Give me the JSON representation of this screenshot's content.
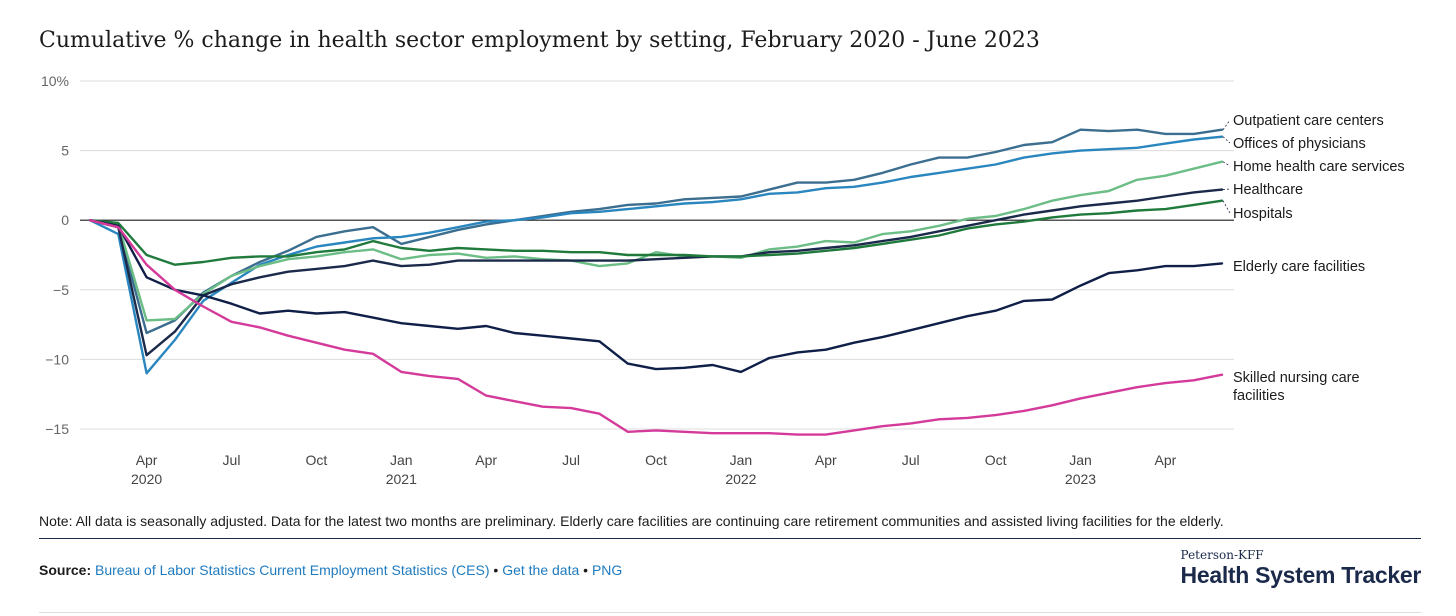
{
  "chart_data": {
    "type": "line",
    "title": "Cumulative % change in health sector employment by setting, February 2020 - June 2023",
    "ylim": [
      -15,
      10
    ],
    "y_ticks": [
      {
        "value": 10,
        "label": "10%"
      },
      {
        "value": 5,
        "label": "5"
      },
      {
        "value": 0,
        "label": "0"
      },
      {
        "value": -5,
        "label": "−5"
      },
      {
        "value": -10,
        "label": "−10"
      },
      {
        "value": -15,
        "label": "−15"
      }
    ],
    "x_ticks": [
      {
        "index": 2,
        "label": "Apr",
        "year": "2020"
      },
      {
        "index": 5,
        "label": "Jul",
        "year": ""
      },
      {
        "index": 8,
        "label": "Oct",
        "year": ""
      },
      {
        "index": 11,
        "label": "Jan",
        "year": "2021"
      },
      {
        "index": 14,
        "label": "Apr",
        "year": ""
      },
      {
        "index": 17,
        "label": "Jul",
        "year": ""
      },
      {
        "index": 20,
        "label": "Oct",
        "year": ""
      },
      {
        "index": 23,
        "label": "Jan",
        "year": "2022"
      },
      {
        "index": 26,
        "label": "Apr",
        "year": ""
      },
      {
        "index": 29,
        "label": "Jul",
        "year": ""
      },
      {
        "index": 32,
        "label": "Oct",
        "year": ""
      },
      {
        "index": 35,
        "label": "Jan",
        "year": "2023"
      },
      {
        "index": 38,
        "label": "Apr",
        "year": ""
      }
    ],
    "x": [
      "2020-02",
      "2020-03",
      "2020-04",
      "2020-05",
      "2020-06",
      "2020-07",
      "2020-08",
      "2020-09",
      "2020-10",
      "2020-11",
      "2020-12",
      "2021-01",
      "2021-02",
      "2021-03",
      "2021-04",
      "2021-05",
      "2021-06",
      "2021-07",
      "2021-08",
      "2021-09",
      "2021-10",
      "2021-11",
      "2021-12",
      "2022-01",
      "2022-02",
      "2022-03",
      "2022-04",
      "2022-05",
      "2022-06",
      "2022-07",
      "2022-08",
      "2022-09",
      "2022-10",
      "2022-11",
      "2022-12",
      "2023-01",
      "2023-02",
      "2023-03",
      "2023-04",
      "2023-05",
      "2023-06"
    ],
    "grid": true,
    "series": [
      {
        "name": "Outpatient care centers",
        "color": "#3c6e8f",
        "values": [
          0,
          -0.5,
          -8.1,
          -7.2,
          -5.2,
          -4.0,
          -3.0,
          -2.2,
          -1.2,
          -0.8,
          -0.5,
          -1.7,
          -1.2,
          -0.7,
          -0.3,
          0.0,
          0.3,
          0.6,
          0.8,
          1.1,
          1.2,
          1.5,
          1.6,
          1.7,
          2.2,
          2.7,
          2.7,
          2.9,
          3.4,
          4.0,
          4.5,
          4.5,
          4.9,
          5.4,
          5.6,
          6.5,
          6.4,
          6.5,
          6.2,
          6.2,
          6.5
        ]
      },
      {
        "name": "Offices of physicians",
        "color": "#2a86bf",
        "values": [
          0,
          -1.0,
          -11.0,
          -8.6,
          -5.8,
          -4.5,
          -3.2,
          -2.5,
          -1.9,
          -1.6,
          -1.3,
          -1.2,
          -0.9,
          -0.5,
          -0.1,
          0.0,
          0.2,
          0.5,
          0.6,
          0.8,
          1.0,
          1.2,
          1.3,
          1.5,
          1.9,
          2.0,
          2.3,
          2.4,
          2.7,
          3.1,
          3.4,
          3.7,
          4.0,
          4.5,
          4.8,
          5.0,
          5.1,
          5.2,
          5.5,
          5.8,
          6.0
        ]
      },
      {
        "name": "Home health care services",
        "color": "#6cbd86",
        "values": [
          0,
          -0.3,
          -7.2,
          -7.1,
          -5.3,
          -4.0,
          -3.3,
          -2.8,
          -2.6,
          -2.3,
          -2.1,
          -2.8,
          -2.5,
          -2.4,
          -2.7,
          -2.6,
          -2.8,
          -2.9,
          -3.3,
          -3.1,
          -2.3,
          -2.6,
          -2.6,
          -2.7,
          -2.1,
          -1.9,
          -1.5,
          -1.6,
          -1.0,
          -0.8,
          -0.4,
          0.1,
          0.3,
          0.8,
          1.4,
          1.8,
          2.1,
          2.9,
          3.2,
          3.7,
          4.2
        ]
      },
      {
        "name": "Healthcare",
        "color": "#1b2a4a",
        "values": [
          0,
          -0.5,
          -9.7,
          -8.0,
          -5.4,
          -4.6,
          -4.1,
          -3.7,
          -3.5,
          -3.3,
          -2.9,
          -3.3,
          -3.2,
          -2.9,
          -2.9,
          -2.9,
          -2.9,
          -2.9,
          -2.9,
          -2.9,
          -2.8,
          -2.7,
          -2.6,
          -2.6,
          -2.3,
          -2.2,
          -2.0,
          -1.8,
          -1.5,
          -1.2,
          -0.8,
          -0.4,
          0.0,
          0.4,
          0.7,
          1.0,
          1.2,
          1.4,
          1.7,
          2.0,
          2.2
        ]
      },
      {
        "name": "Hospitals",
        "color": "#1f7a3c",
        "values": [
          0,
          -0.2,
          -2.5,
          -3.2,
          -3.0,
          -2.7,
          -2.6,
          -2.6,
          -2.3,
          -2.1,
          -1.5,
          -2.0,
          -2.2,
          -2.0,
          -2.1,
          -2.2,
          -2.2,
          -2.3,
          -2.3,
          -2.5,
          -2.5,
          -2.5,
          -2.6,
          -2.6,
          -2.5,
          -2.4,
          -2.2,
          -2.0,
          -1.7,
          -1.4,
          -1.1,
          -0.6,
          -0.3,
          -0.1,
          0.2,
          0.4,
          0.5,
          0.7,
          0.8,
          1.1,
          1.4
        ]
      },
      {
        "name": "Elderly care facilities",
        "color": "#0f1f48",
        "values": [
          0,
          -0.4,
          -4.1,
          -5.0,
          -5.4,
          -6.0,
          -6.7,
          -6.5,
          -6.7,
          -6.6,
          -7.0,
          -7.4,
          -7.6,
          -7.8,
          -7.6,
          -8.1,
          -8.3,
          -8.5,
          -8.7,
          -10.3,
          -10.7,
          -10.6,
          -10.4,
          -10.9,
          -9.9,
          -9.5,
          -9.3,
          -8.8,
          -8.4,
          -7.9,
          -7.4,
          -6.9,
          -6.5,
          -5.8,
          -5.7,
          -4.7,
          -3.8,
          -3.6,
          -3.3,
          -3.3,
          -3.1
        ]
      },
      {
        "name": "Skilled nursing care facilities",
        "color": "#d43a9a",
        "values": [
          0,
          -0.5,
          -3.2,
          -5.0,
          -6.2,
          -7.3,
          -7.7,
          -8.3,
          -8.8,
          -9.3,
          -9.6,
          -10.9,
          -11.2,
          -11.4,
          -12.6,
          -13.0,
          -13.4,
          -13.5,
          -13.9,
          -15.2,
          -15.1,
          -15.2,
          -15.3,
          -15.3,
          -15.3,
          -15.4,
          -15.4,
          -15.1,
          -14.8,
          -14.6,
          -14.3,
          -14.2,
          -14.0,
          -13.7,
          -13.3,
          -12.8,
          -12.4,
          -12.0,
          -11.7,
          -11.5,
          -11.1
        ]
      }
    ],
    "series_labels": [
      {
        "lines": [
          "Outpatient care centers"
        ]
      },
      {
        "lines": [
          "Offices of physicians"
        ]
      },
      {
        "lines": [
          "Home health care services"
        ]
      },
      {
        "lines": [
          "Healthcare"
        ]
      },
      {
        "lines": [
          "Hospitals"
        ]
      },
      {
        "lines": [
          "Elderly care facilities"
        ]
      },
      {
        "lines": [
          "Skilled nursing care",
          "facilities"
        ]
      }
    ]
  },
  "note": "Note: All data is seasonally adjusted. Data for the latest two months are preliminary. Elderly care facilities are continuing care retirement communities and assisted living facilities for the elderly.",
  "source": {
    "prefix": "Source:",
    "link1": "Bureau of Labor Statistics Current Employment Statistics (CES)",
    "sep1": "•",
    "link2": "Get the data",
    "sep2": "•",
    "link3": "PNG"
  },
  "brand": {
    "small": "Peterson-KFF",
    "big": "Health System Tracker"
  }
}
